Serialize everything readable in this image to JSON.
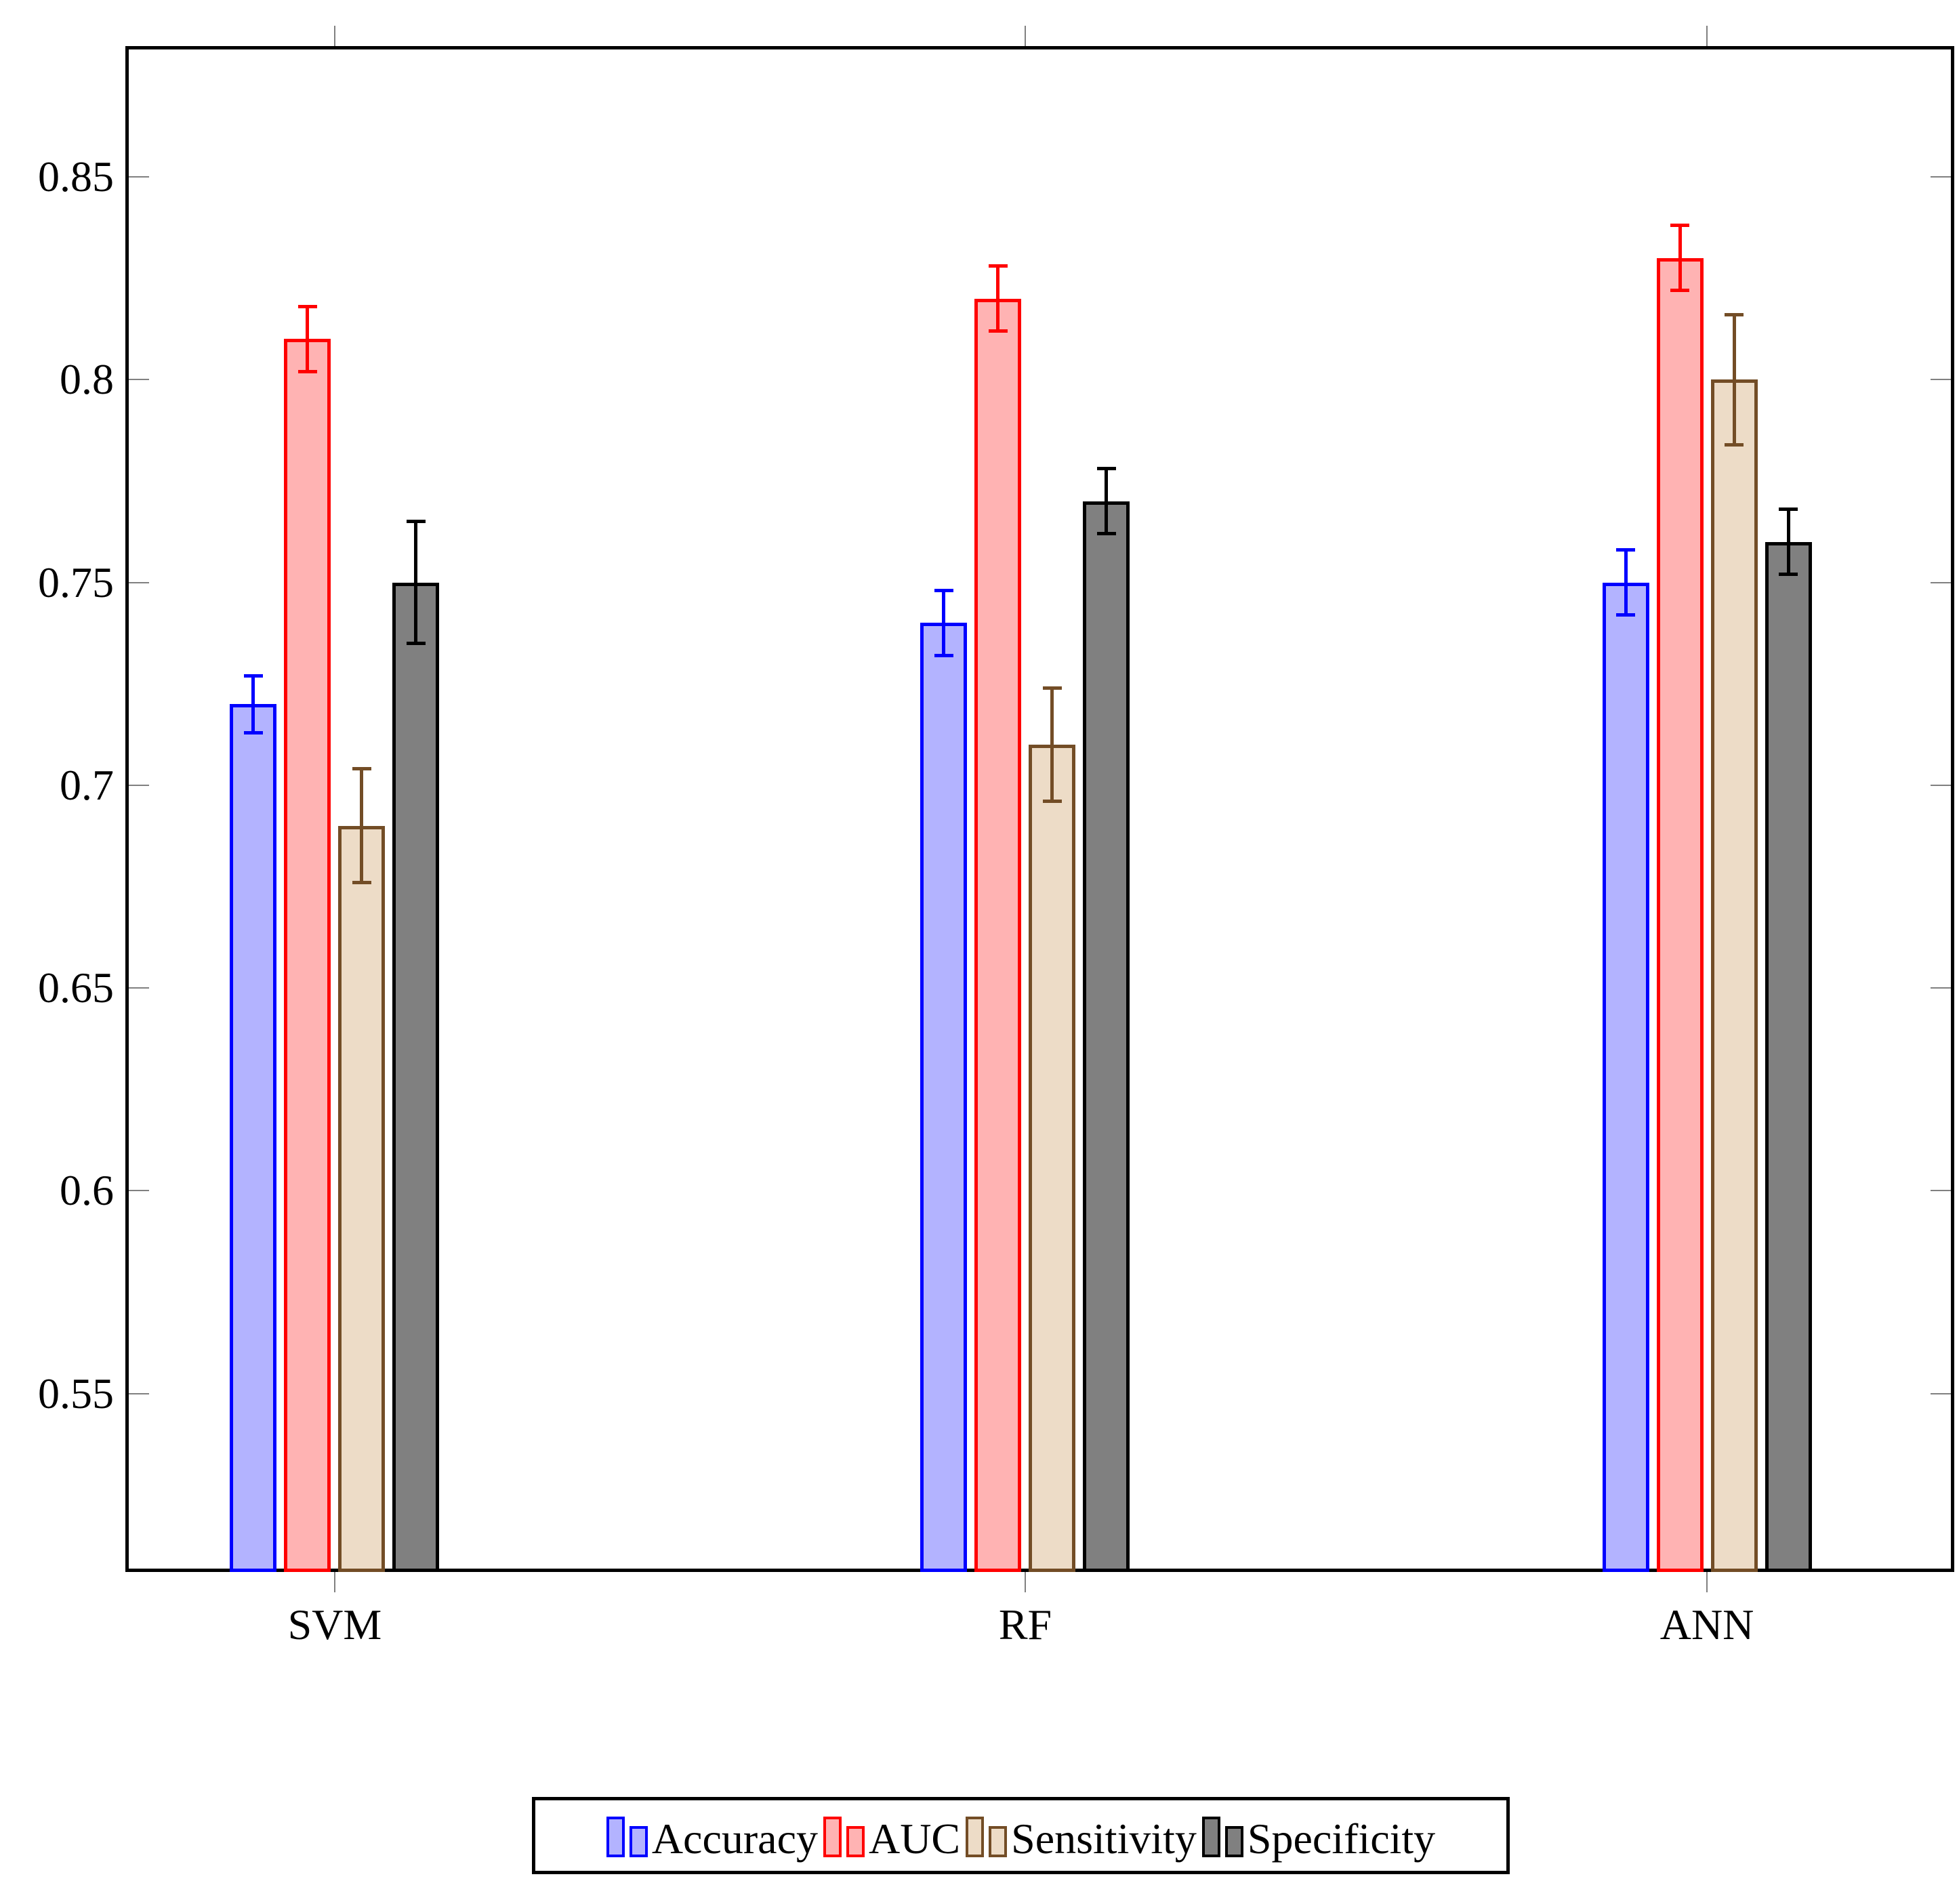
{
  "chart_data": {
    "type": "bar",
    "title": "",
    "xlabel": "",
    "ylabel": "",
    "categories": [
      "SVM",
      "RF",
      "ANN"
    ],
    "series": [
      {
        "name": "Accuracy",
        "border": "#0000ff",
        "fill": "#b3b3ff",
        "values": [
          0.72,
          0.74,
          0.75
        ],
        "errors": [
          0.007,
          0.008,
          0.008
        ]
      },
      {
        "name": "AUC",
        "border": "#ff0000",
        "fill": "#ffb3b3",
        "values": [
          0.81,
          0.82,
          0.83
        ],
        "errors": [
          0.008,
          0.008,
          0.008
        ]
      },
      {
        "name": "Sensitivity",
        "border": "#734d26",
        "fill": "#eddcc7",
        "values": [
          0.69,
          0.71,
          0.8
        ],
        "errors": [
          0.014,
          0.014,
          0.016
        ]
      },
      {
        "name": "Specificity",
        "border": "#000000",
        "fill": "#808080",
        "values": [
          0.75,
          0.77,
          0.76
        ],
        "errors": [
          0.015,
          0.008,
          0.008
        ]
      }
    ],
    "y_ticks": [
      0.55,
      0.6,
      0.65,
      0.7,
      0.75,
      0.8,
      0.85
    ],
    "y_tick_labels": [
      "0.55",
      "0.6",
      "0.65",
      "0.7",
      "0.75",
      "0.8",
      "0.85"
    ],
    "ylim": [
      0.50653,
      0.88174
    ],
    "grid": false,
    "legend_position": "bottom",
    "legend_entries": [
      "Accuracy",
      "AUC",
      "Sensitivity",
      "Specificity"
    ],
    "group_center_fractions": [
      0.1136,
      0.492,
      0.8656
    ],
    "axis_color": "#000000",
    "tick_color": "#808080",
    "background_color": "#ffffff"
  }
}
